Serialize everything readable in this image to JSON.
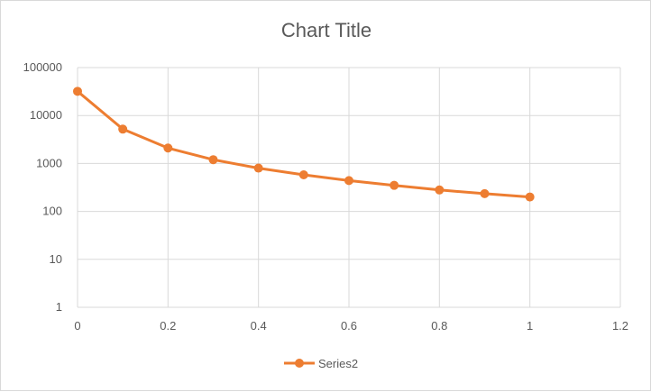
{
  "chart_data": {
    "type": "line",
    "title": "Chart Title",
    "xlabel": "",
    "ylabel": "",
    "x_ticks": [
      "0",
      "0.2",
      "0.4",
      "0.6",
      "0.8",
      "1",
      "1.2"
    ],
    "x_tick_values": [
      0,
      0.2,
      0.4,
      0.6,
      0.8,
      1.0,
      1.2
    ],
    "y_ticks": [
      "1",
      "10",
      "100",
      "1000",
      "10000",
      "100000"
    ],
    "y_tick_values": [
      1,
      10,
      100,
      1000,
      10000,
      100000
    ],
    "xlim": [
      0,
      1.2
    ],
    "ylim": [
      1,
      100000
    ],
    "y_scale": "log",
    "grid": true,
    "legend_position": "bottom",
    "series": [
      {
        "name": "Series2",
        "color": "#ed7d31",
        "x": [
          0,
          0.1,
          0.2,
          0.3,
          0.4,
          0.5,
          0.6,
          0.7,
          0.8,
          0.9,
          1.0
        ],
        "y": [
          32000,
          5200,
          2100,
          1200,
          800,
          580,
          440,
          350,
          280,
          235,
          200
        ]
      }
    ]
  }
}
